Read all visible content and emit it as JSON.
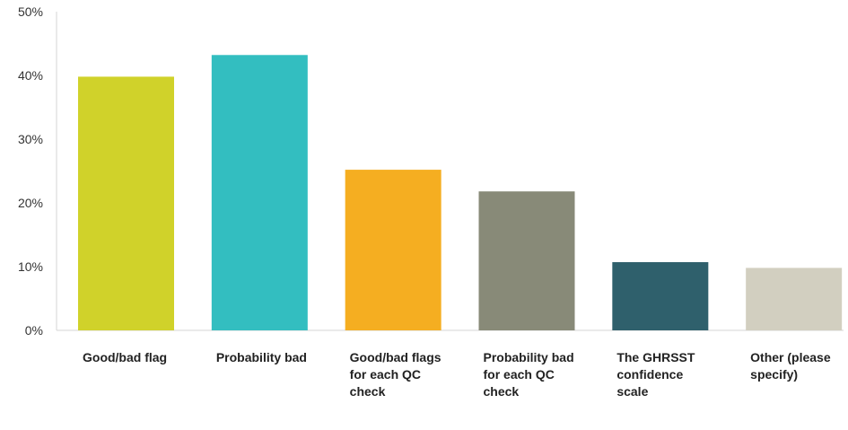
{
  "chart_data": {
    "type": "bar",
    "title": "",
    "xlabel": "",
    "ylabel": "",
    "ylim": [
      0,
      50
    ],
    "yticks": [
      0,
      10,
      20,
      30,
      40,
      50
    ],
    "ytick_labels": [
      "0%",
      "10%",
      "20%",
      "30%",
      "40%",
      "50%"
    ],
    "grid": false,
    "legend": "none",
    "categories": [
      "Good/bad flag",
      "Probability bad",
      "Good/bad flags for each QC check",
      "Probability bad for each QC check",
      "The GHRSST confidence scale",
      "Other (please specify)"
    ],
    "values": [
      39.8,
      43.2,
      25.2,
      21.8,
      10.7,
      9.8
    ],
    "colors": [
      "#d0d22a",
      "#33bec0",
      "#f5ae21",
      "#888a78",
      "#2f606c",
      "#d2cfc0"
    ]
  }
}
